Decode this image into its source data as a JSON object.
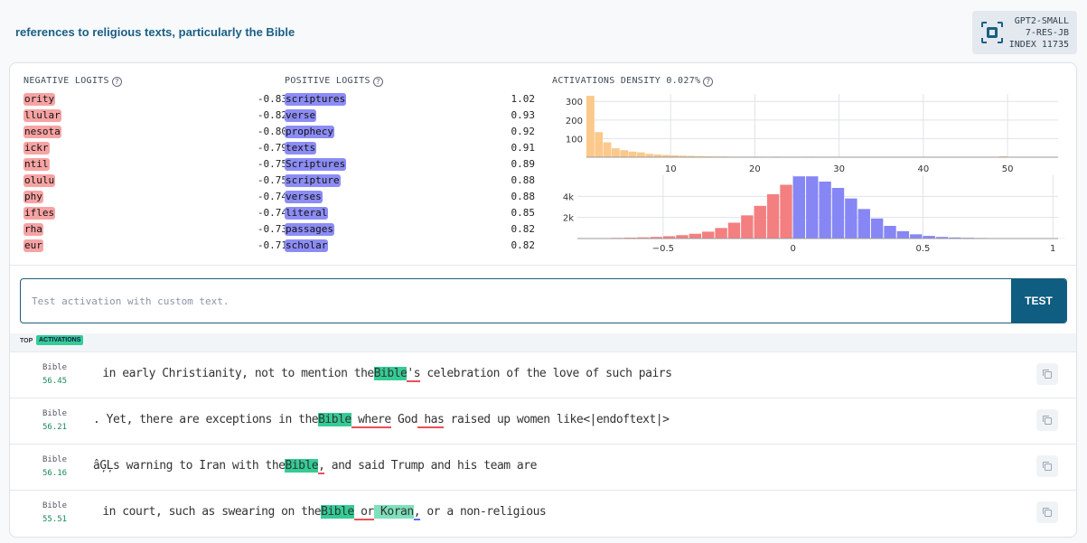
{
  "header": {
    "title": "references to religious texts, particularly the Bible",
    "badge": {
      "line1": "GPT2-SMALL",
      "line2": "7-RES-JB",
      "line3": "INDEX 11735"
    }
  },
  "negative_logits": {
    "heading": "NEGATIVE LOGITS",
    "items": [
      {
        "token": "ority",
        "value": "-0.83"
      },
      {
        "token": "llular",
        "value": "-0.82"
      },
      {
        "token": "nesota",
        "value": "-0.80"
      },
      {
        "token": "ickr",
        "value": "-0.79"
      },
      {
        "token": "ntil",
        "value": "-0.75"
      },
      {
        "token": "olulu",
        "value": "-0.75"
      },
      {
        "token": "phy",
        "value": "-0.74"
      },
      {
        "token": "ifles",
        "value": "-0.74"
      },
      {
        "token": "rha",
        "value": "-0.73"
      },
      {
        "token": "eur",
        "value": "-0.71"
      }
    ]
  },
  "positive_logits": {
    "heading": "POSITIVE LOGITS",
    "items": [
      {
        "token": "scriptures",
        "value": "1.02"
      },
      {
        "token": "verse",
        "value": "0.93"
      },
      {
        "token": "prophecy",
        "value": "0.92"
      },
      {
        "token": "texts",
        "value": "0.91"
      },
      {
        "token": "Scriptures",
        "value": "0.89"
      },
      {
        "token": "scripture",
        "value": "0.88"
      },
      {
        "token": "verses",
        "value": "0.88"
      },
      {
        "token": "literal",
        "value": "0.85"
      },
      {
        "token": "passages",
        "value": "0.82"
      },
      {
        "token": "scholar",
        "value": "0.82"
      }
    ]
  },
  "density": {
    "heading": "ACTIVATIONS DENSITY 0.027%"
  },
  "chart_data": [
    {
      "type": "bar",
      "title": "",
      "xlabel": "",
      "ylabel": "",
      "x_ticks": [
        "10",
        "20",
        "30",
        "40",
        "50"
      ],
      "y_ticks": [
        "100",
        "200",
        "300"
      ],
      "xlim": [
        0,
        56
      ],
      "ylim": [
        0,
        340
      ],
      "color": "#fcc98c",
      "x": [
        1,
        2,
        3,
        4,
        5,
        6,
        7,
        8,
        9,
        10,
        11,
        12,
        13,
        14,
        15,
        16,
        17,
        18,
        19,
        20,
        21,
        22,
        23,
        24,
        25,
        26,
        27,
        28,
        29,
        30,
        31,
        32,
        33,
        34,
        35,
        36,
        37,
        38,
        39,
        40,
        41,
        42,
        43,
        44,
        45,
        46,
        47,
        48,
        49,
        50,
        51,
        52,
        53,
        54,
        55
      ],
      "values": [
        330,
        135,
        80,
        48,
        38,
        30,
        26,
        18,
        15,
        12,
        10,
        8,
        7,
        6,
        5,
        4,
        4,
        3,
        3,
        3,
        3,
        2,
        3,
        2,
        2,
        2,
        3,
        2,
        2,
        2,
        2,
        2,
        2,
        1,
        2,
        1,
        2,
        1,
        1,
        1,
        1,
        1,
        1,
        1,
        1,
        1,
        1,
        1,
        1,
        5,
        1,
        1,
        1,
        1,
        1
      ]
    },
    {
      "type": "bar",
      "title": "",
      "xlabel": "",
      "ylabel": "",
      "x_ticks": [
        "−0.5",
        "0",
        "0.5",
        "1"
      ],
      "y_ticks": [
        "2k",
        "4k"
      ],
      "xlim": [
        -0.83,
        1.02
      ],
      "ylim": [
        0,
        6000
      ],
      "negative_color": "#f47f80",
      "positive_color": "#8686f5",
      "x": [
        -0.8,
        -0.75,
        -0.7,
        -0.65,
        -0.6,
        -0.55,
        -0.5,
        -0.45,
        -0.4,
        -0.35,
        -0.3,
        -0.25,
        -0.2,
        -0.15,
        -0.1,
        -0.05,
        0.0,
        0.05,
        0.1,
        0.15,
        0.2,
        0.25,
        0.3,
        0.35,
        0.4,
        0.45,
        0.5,
        0.55,
        0.6,
        0.65,
        0.7,
        0.75,
        0.8,
        0.85,
        0.9,
        0.95,
        1.0
      ],
      "values": [
        30,
        40,
        60,
        80,
        110,
        150,
        220,
        320,
        450,
        650,
        1000,
        1500,
        2200,
        3100,
        4200,
        5100,
        5900,
        5900,
        5400,
        4800,
        3800,
        2800,
        1900,
        1200,
        700,
        400,
        250,
        150,
        100,
        70,
        50,
        40,
        30,
        25,
        20,
        15,
        10
      ]
    }
  ],
  "test": {
    "placeholder": "Test activation with custom text.",
    "button_label": "TEST"
  },
  "top": {
    "label": "TOP",
    "tag": "ACTIVATIONS"
  },
  "activations": [
    {
      "token": "Bible",
      "value": "56.45",
      "segments": [
        {
          "text": " in early Christianity, not to mention the",
          "cls": ""
        },
        {
          "text": "Bible",
          "cls": "hl"
        },
        {
          "text": "'s",
          "cls": "ul-red"
        },
        {
          "text": " celebration of the love of such pairs",
          "cls": ""
        }
      ]
    },
    {
      "token": "Bible",
      "value": "56.21",
      "segments": [
        {
          "text": ". Yet, there are exceptions in the",
          "cls": ""
        },
        {
          "text": "Bible",
          "cls": "hl"
        },
        {
          "text": " where",
          "cls": "ul-red"
        },
        {
          "text": " God",
          "cls": ""
        },
        {
          "text": " has",
          "cls": "ul-red"
        },
        {
          "text": " raised up women like<|endoftext|>",
          "cls": ""
        }
      ]
    },
    {
      "token": "Bible",
      "value": "56.16",
      "segments": [
        {
          "text": "âĢĻs warning to Iran with the",
          "cls": ""
        },
        {
          "text": "Bible",
          "cls": "hl"
        },
        {
          "text": ",",
          "cls": "ul-red"
        },
        {
          "text": " and said Trump and his team are",
          "cls": ""
        }
      ]
    },
    {
      "token": "Bible",
      "value": "55.51",
      "segments": [
        {
          "text": " in court, such as swearing on the",
          "cls": ""
        },
        {
          "text": "Bible",
          "cls": "hl"
        },
        {
          "text": " or",
          "cls": "ul-red"
        },
        {
          "text": " Koran",
          "cls": "hl2"
        },
        {
          "text": ",",
          "cls": "ul-blue"
        },
        {
          "text": " or a non-religious",
          "cls": ""
        }
      ]
    }
  ]
}
